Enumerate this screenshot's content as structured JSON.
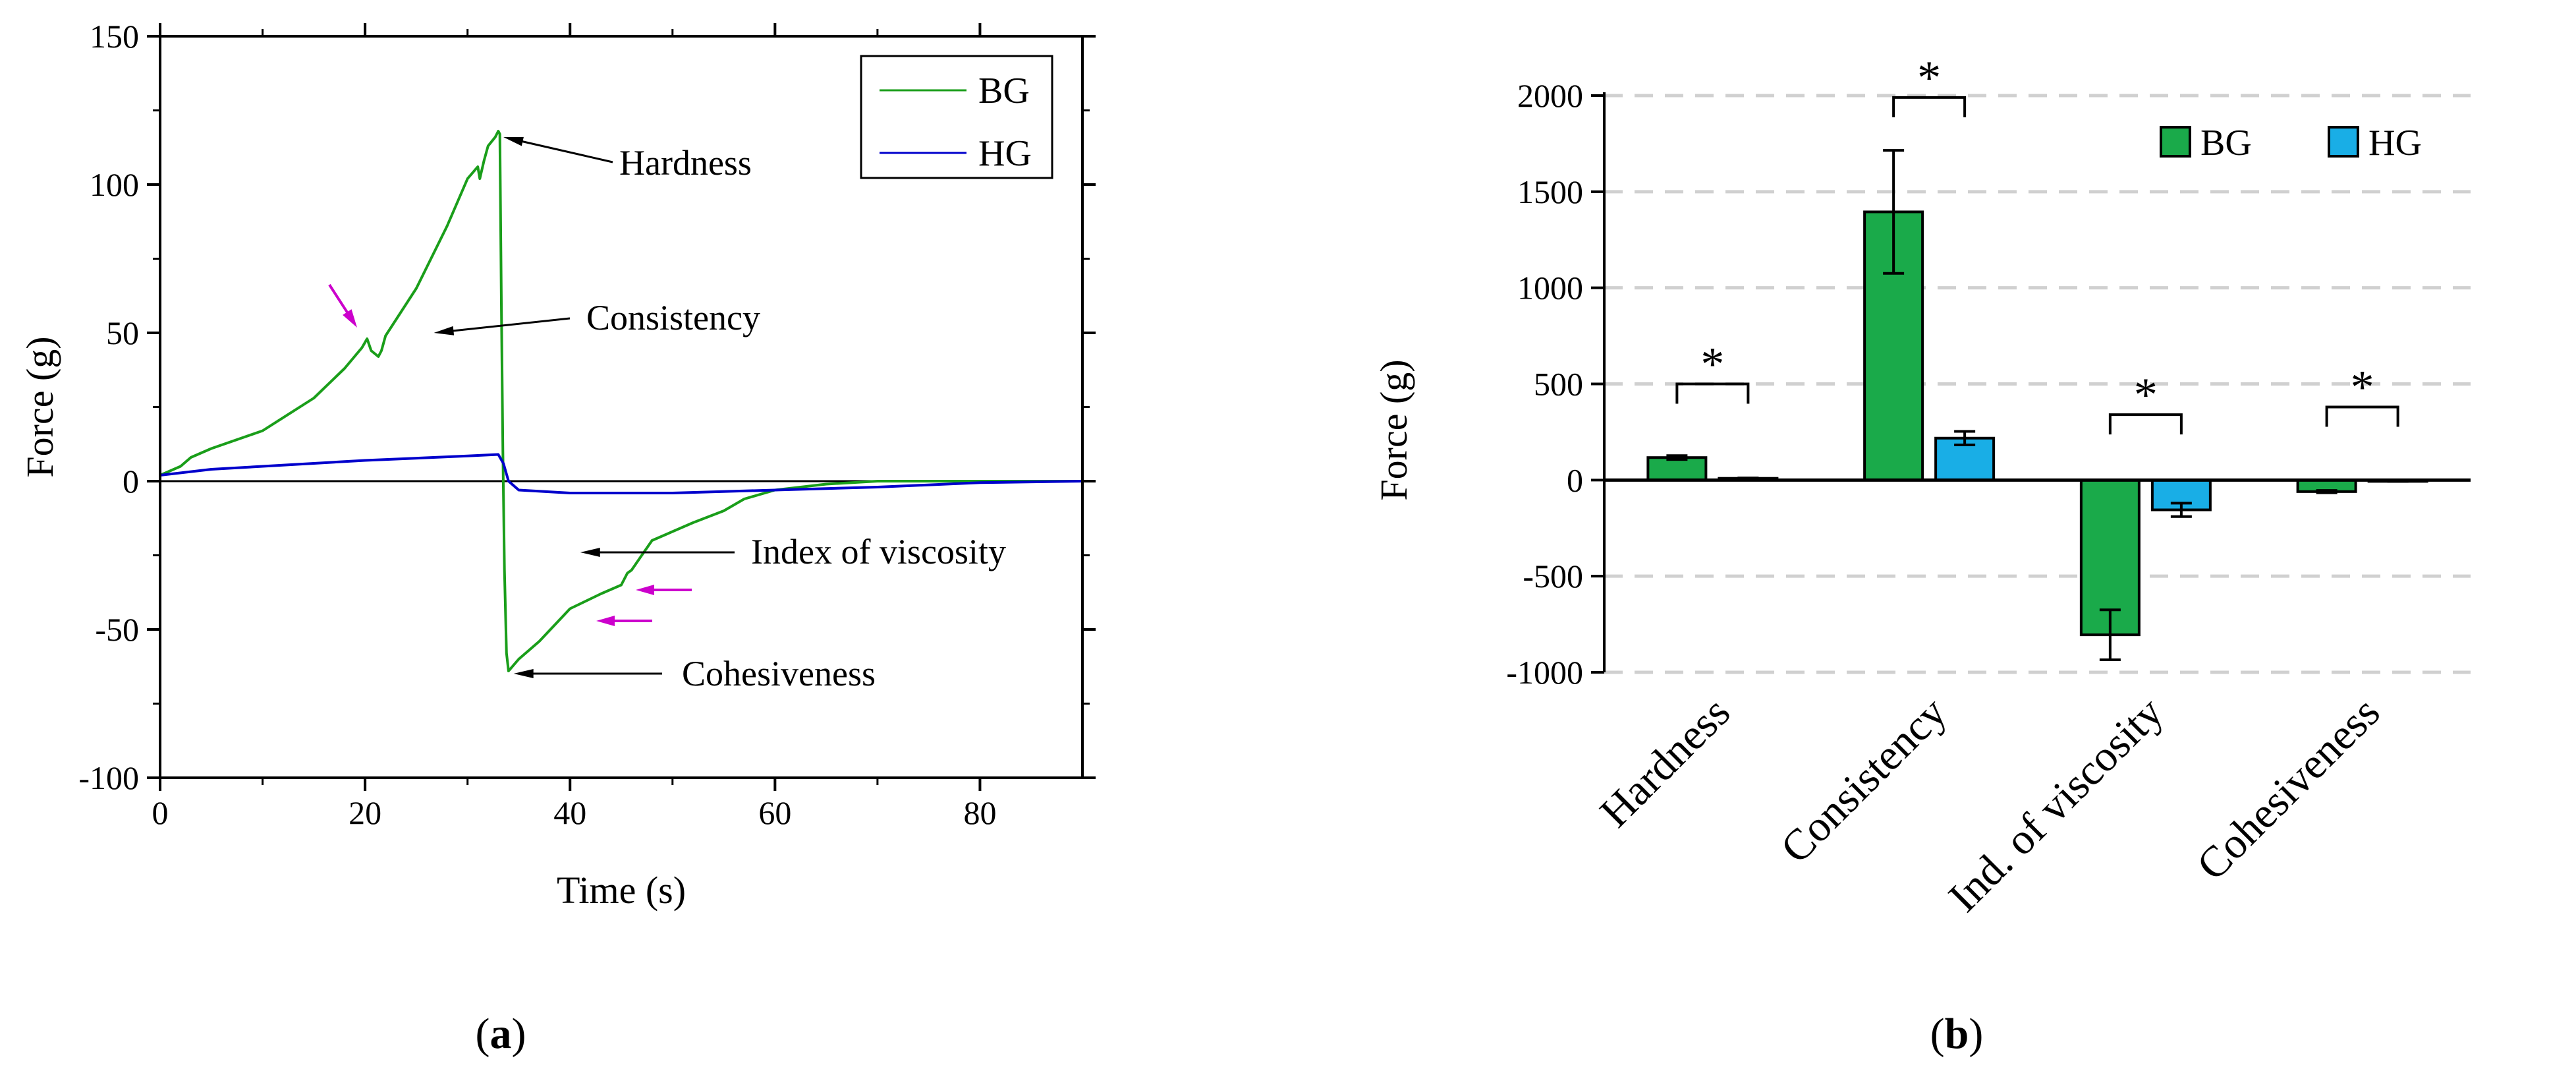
{
  "figure": {
    "panel_a_label": {
      "open": "(",
      "letter": "a",
      "close": ")"
    },
    "panel_b_label": {
      "open": "(",
      "letter": "b",
      "close": ")"
    }
  },
  "chart_data": [
    {
      "panel": "a",
      "type": "line",
      "title": "",
      "xlabel": "Time (s)",
      "ylabel": "Force (g)",
      "xlim": [
        0,
        90
      ],
      "ylim": [
        -100,
        150
      ],
      "xticks": [
        0,
        20,
        40,
        60,
        80
      ],
      "yticks": [
        -100,
        -50,
        0,
        50,
        100,
        150
      ],
      "grid": false,
      "legend_position": "top-right",
      "series": [
        {
          "name": "BG",
          "color": "#1a9e1a",
          "x": [
            0,
            2,
            3,
            5,
            10,
            15,
            18,
            19.7,
            20.2,
            20.6,
            21.3,
            21.6,
            22,
            25,
            28,
            30,
            31,
            31.2,
            31.6,
            32,
            32.7,
            33,
            33.15,
            33.3,
            33.45,
            33.6,
            33.8,
            34,
            35,
            37,
            40,
            43,
            45,
            45.6,
            46,
            47,
            48,
            52,
            55,
            57,
            60,
            65,
            70,
            75,
            80,
            90
          ],
          "y": [
            2,
            5,
            8,
            11,
            17,
            28,
            38,
            45,
            48,
            44,
            42,
            44,
            49,
            65,
            86,
            102,
            106,
            102,
            108,
            113,
            116,
            118,
            117,
            60,
            10,
            -30,
            -58,
            -64,
            -60,
            -54,
            -43,
            -38,
            -35,
            -31,
            -30,
            -25,
            -20,
            -14,
            -10,
            -6,
            -3,
            -1,
            0,
            0,
            0,
            0
          ]
        },
        {
          "name": "HG",
          "color": "#0000cc",
          "x": [
            0,
            5,
            10,
            20,
            30,
            33,
            33.5,
            34,
            35,
            40,
            50,
            60,
            70,
            80,
            90
          ],
          "y": [
            2,
            4,
            5,
            7,
            8.5,
            9,
            6,
            0,
            -3,
            -4,
            -4,
            -3,
            -2,
            -0.5,
            0
          ]
        }
      ],
      "annotations": [
        {
          "text": "Hardness",
          "data_x": 33.5,
          "data_y": 116
        },
        {
          "text": "Consistency",
          "data_x": 28,
          "data_y": 50
        },
        {
          "text": "Index of viscosity",
          "data_x": 41,
          "data_y": -15
        },
        {
          "text": "Cohesiveness",
          "data_x": 34.5,
          "data_y": -65
        }
      ],
      "highlight_arrows": [
        {
          "color": "#cc00cc",
          "data_x": 20,
          "data_y": 52
        },
        {
          "color": "#cc00cc",
          "data_x": 47,
          "data_y": -36
        },
        {
          "color": "#cc00cc",
          "data_x": 43,
          "data_y": -43
        }
      ]
    },
    {
      "panel": "b",
      "type": "bar",
      "title": "",
      "xlabel": "",
      "ylabel": "Force (g)",
      "ylim": [
        -1000,
        2000
      ],
      "yticks": [
        -1000,
        -500,
        0,
        500,
        1000,
        1500,
        2000
      ],
      "grid": true,
      "legend_position": "top-right",
      "categories": [
        "Hardness",
        "Consistency",
        "Ind. of viscosity",
        "Cohesiveness"
      ],
      "series": [
        {
          "name": "BG",
          "color": "#1aaa4a",
          "values": [
            117,
            1395,
            -805,
            -60
          ],
          "errors": [
            10,
            320,
            130,
            6
          ]
        },
        {
          "name": "HG",
          "color": "#19aee6",
          "values": [
            9,
            218,
            -155,
            -6
          ],
          "errors": [
            2,
            35,
            35,
            1
          ]
        }
      ],
      "significance": [
        {
          "category": "Hardness",
          "label": "*",
          "bracket_y": 500
        },
        {
          "category": "Consistency",
          "label": "*",
          "bracket_y": 1990
        },
        {
          "category": "Ind. of viscosity",
          "label": "*",
          "bracket_y": 340
        },
        {
          "category": "Cohesiveness",
          "label": "*",
          "bracket_y": 380
        }
      ]
    }
  ]
}
